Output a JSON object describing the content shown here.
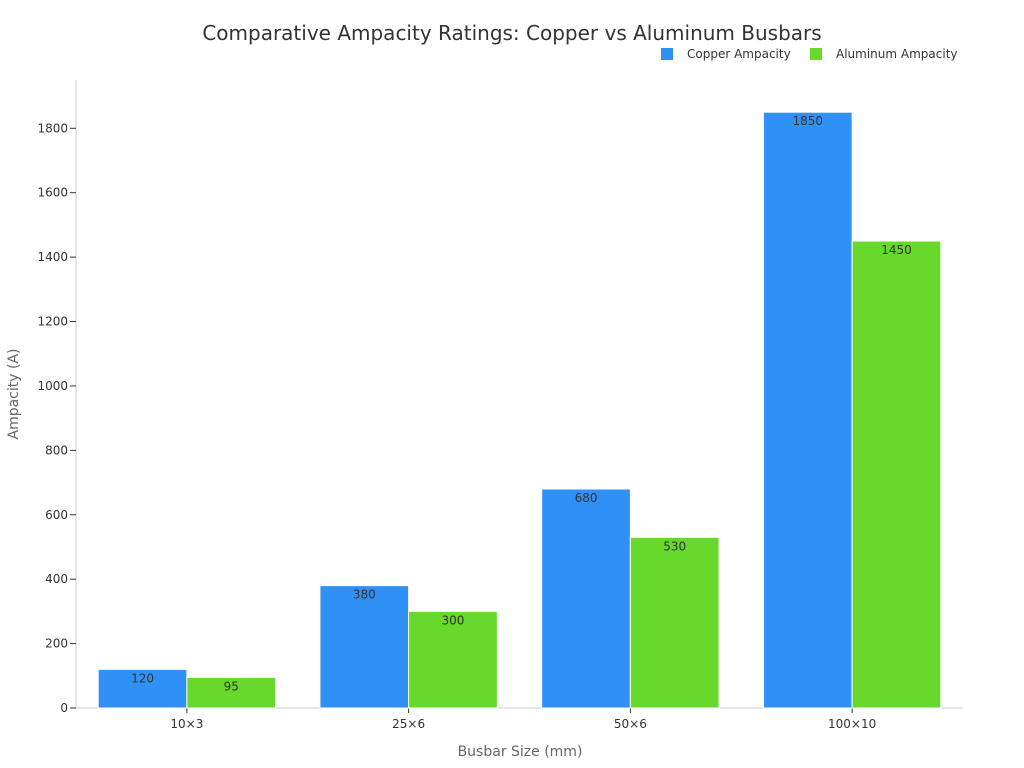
{
  "chart_data": {
    "type": "bar",
    "title": "Comparative Ampacity Ratings: Copper vs Aluminum Busbars",
    "xlabel": "Busbar Size (mm)",
    "ylabel": "Ampacity (A)",
    "categories": [
      "10×3",
      "25×6",
      "50×6",
      "100×10"
    ],
    "series": [
      {
        "name": "Copper Ampacity",
        "values": [
          120,
          380,
          680,
          1850
        ],
        "color": "#2f91f6"
      },
      {
        "name": "Aluminum Ampacity",
        "values": [
          95,
          300,
          530,
          1450
        ],
        "color": "#66d92a"
      }
    ],
    "ylim": [
      0,
      1950
    ],
    "yticks": [
      0,
      200,
      400,
      600,
      800,
      1000,
      1200,
      1400,
      1600,
      1800
    ],
    "grid": false,
    "legend_position": "top-right",
    "data_labels": true
  }
}
